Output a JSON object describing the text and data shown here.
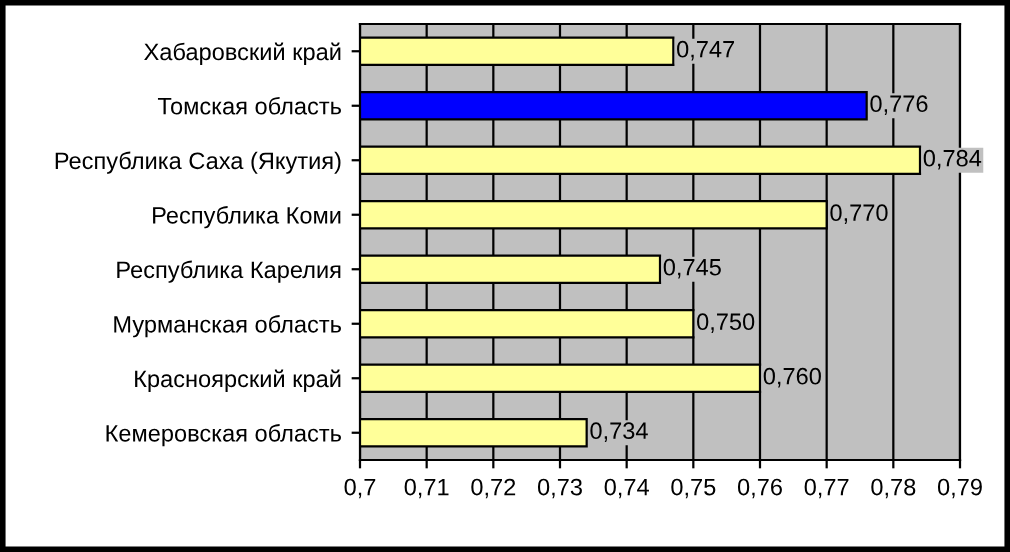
{
  "chart_data": {
    "type": "bar",
    "orientation": "horizontal",
    "categories": [
      "Хабаровский край",
      "Томская область",
      "Республика Саха (Якутия)",
      "Республика Коми",
      "Республика Карелия",
      "Мурманская область",
      "Красноярский край",
      "Кемеровская область"
    ],
    "values": [
      0.747,
      0.776,
      0.784,
      0.77,
      0.745,
      0.75,
      0.76,
      0.734
    ],
    "colors": [
      "#ffff99",
      "#0000ff",
      "#ffff99",
      "#ffff99",
      "#ffff99",
      "#ffff99",
      "#ffff99",
      "#ffff99"
    ],
    "value_labels": [
      "0,747",
      "0,776",
      "0,784",
      "0,770",
      "0,745",
      "0,750",
      "0,760",
      "0,734"
    ],
    "xlim": [
      0.7,
      0.79
    ],
    "xticks": [
      {
        "value": 0.7,
        "label": "0,7"
      },
      {
        "value": 0.71,
        "label": "0,71"
      },
      {
        "value": 0.72,
        "label": "0,72"
      },
      {
        "value": 0.73,
        "label": "0,73"
      },
      {
        "value": 0.74,
        "label": "0,74"
      },
      {
        "value": 0.75,
        "label": "0,75"
      },
      {
        "value": 0.76,
        "label": "0,76"
      },
      {
        "value": 0.77,
        "label": "0,77"
      },
      {
        "value": 0.78,
        "label": "0,78"
      },
      {
        "value": 0.79,
        "label": "0,79"
      }
    ],
    "grid": "x"
  }
}
